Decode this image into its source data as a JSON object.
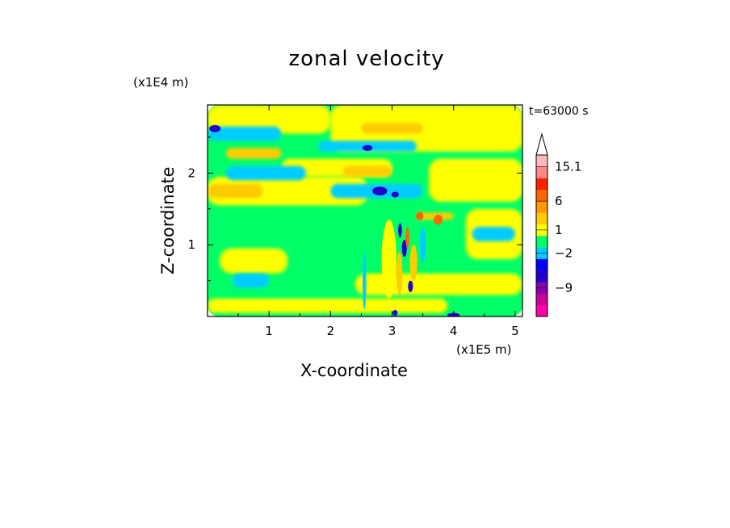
{
  "chart_data": {
    "type": "heatmap",
    "title": "zonal velocity",
    "xlabel": "X-coordinate",
    "ylabel": "Z-coordinate",
    "x_unit": "(x1E5 m)",
    "y_unit": "(x1E4 m)",
    "time_label": "t=63000 s",
    "xlim": [
      0,
      5.12
    ],
    "ylim": [
      0,
      2.95
    ],
    "x_ticks": [
      1,
      2,
      3,
      4,
      5
    ],
    "y_ticks": [
      1,
      2
    ],
    "colorbar": {
      "labels": [
        "15.1",
        "6",
        "1",
        "−2",
        "−9"
      ],
      "label_values": [
        15.1,
        6,
        1,
        -2,
        -9
      ],
      "colors": [
        "#ff00aa",
        "#cc0099",
        "#8800aa",
        "#2200cc",
        "#0000ff",
        "#00ccff",
        "#00ff66",
        "#ffff00",
        "#ffcc00",
        "#ff9900",
        "#ff6600",
        "#ff2200",
        "#ff8888",
        "#ffbbbb"
      ],
      "extend_max": true
    },
    "bands": [
      {
        "kind": "green",
        "x0": 0.0,
        "x1": 5.12,
        "y0": 0.0,
        "y1": 2.95
      },
      {
        "kind": "yellow",
        "x0": 0.0,
        "x1": 3.9,
        "y0": 0.05,
        "y1": 0.25
      },
      {
        "kind": "yellow",
        "x0": 2.4,
        "x1": 5.12,
        "y0": 0.3,
        "y1": 0.6
      },
      {
        "kind": "yellow",
        "x0": 0.0,
        "x1": 2.6,
        "y0": 1.55,
        "y1": 1.95
      },
      {
        "kind": "yellow",
        "x0": 2.0,
        "x1": 5.12,
        "y0": 2.3,
        "y1": 2.95
      },
      {
        "kind": "yellow",
        "x0": 0.0,
        "x1": 2.0,
        "y0": 2.55,
        "y1": 2.95
      },
      {
        "kind": "yellow",
        "x0": 4.2,
        "x1": 5.12,
        "y0": 0.8,
        "y1": 1.5
      },
      {
        "kind": "yellow",
        "x0": 1.2,
        "x1": 3.0,
        "y0": 1.95,
        "y1": 2.2
      },
      {
        "kind": "yellow",
        "x0": 3.6,
        "x1": 5.12,
        "y0": 1.6,
        "y1": 2.2
      },
      {
        "kind": "yellow",
        "x0": 0.2,
        "x1": 1.3,
        "y0": 0.6,
        "y1": 0.95
      },
      {
        "kind": "cyan",
        "x0": 0.3,
        "x1": 1.6,
        "y0": 1.9,
        "y1": 2.1
      },
      {
        "kind": "cyan",
        "x0": 2.0,
        "x1": 3.5,
        "y0": 1.65,
        "y1": 1.85
      },
      {
        "kind": "cyan",
        "x0": 0.0,
        "x1": 1.2,
        "y0": 2.45,
        "y1": 2.65
      },
      {
        "kind": "cyan",
        "x0": 1.8,
        "x1": 3.4,
        "y0": 2.3,
        "y1": 2.45
      },
      {
        "kind": "cyan",
        "x0": 0.4,
        "x1": 1.0,
        "y0": 0.4,
        "y1": 0.6
      },
      {
        "kind": "cyan",
        "x0": 4.3,
        "x1": 5.0,
        "y0": 1.05,
        "y1": 1.25
      },
      {
        "kind": "orange",
        "x0": 0.0,
        "x1": 0.9,
        "y0": 1.65,
        "y1": 1.85
      },
      {
        "kind": "orange",
        "x0": 2.2,
        "x1": 3.0,
        "y0": 1.95,
        "y1": 2.1
      },
      {
        "kind": "orange",
        "x0": 3.4,
        "x1": 4.0,
        "y0": 1.35,
        "y1": 1.45
      },
      {
        "kind": "orange",
        "x0": 0.3,
        "x1": 1.2,
        "y0": 2.2,
        "y1": 2.35
      },
      {
        "kind": "orange",
        "x0": 2.5,
        "x1": 3.5,
        "y0": 2.55,
        "y1": 2.7
      }
    ],
    "blobs": [
      {
        "kind": "blue",
        "x": 0.12,
        "y": 2.62,
        "rx": 0.09,
        "ry": 0.05
      },
      {
        "kind": "blue",
        "x": 2.6,
        "y": 2.35,
        "rx": 0.08,
        "ry": 0.04
      },
      {
        "kind": "blue",
        "x": 2.8,
        "y": 1.75,
        "rx": 0.12,
        "ry": 0.06
      },
      {
        "kind": "blue",
        "x": 3.05,
        "y": 1.7,
        "rx": 0.06,
        "ry": 0.04
      },
      {
        "kind": "blue",
        "x": 3.13,
        "y": 1.2,
        "rx": 0.03,
        "ry": 0.1
      },
      {
        "kind": "blue",
        "x": 3.2,
        "y": 0.95,
        "rx": 0.04,
        "ry": 0.12
      },
      {
        "kind": "blue",
        "x": 3.3,
        "y": 0.42,
        "rx": 0.04,
        "ry": 0.08
      },
      {
        "kind": "blue",
        "x": 3.05,
        "y": 0.05,
        "rx": 0.04,
        "ry": 0.04
      },
      {
        "kind": "blue",
        "x": 4.0,
        "y": 0.02,
        "rx": 0.1,
        "ry": 0.03
      },
      {
        "kind": "red",
        "x": 3.25,
        "y": 1.1,
        "rx": 0.03,
        "ry": 0.15
      },
      {
        "kind": "red",
        "x": 3.45,
        "y": 1.4,
        "rx": 0.06,
        "ry": 0.06
      },
      {
        "kind": "red",
        "x": 3.75,
        "y": 1.35,
        "rx": 0.07,
        "ry": 0.07
      },
      {
        "kind": "orange",
        "x": 3.35,
        "y": 0.75,
        "rx": 0.06,
        "ry": 0.25
      },
      {
        "kind": "orange",
        "x": 3.12,
        "y": 0.6,
        "rx": 0.05,
        "ry": 0.3
      },
      {
        "kind": "yellow",
        "x": 2.95,
        "y": 0.8,
        "rx": 0.12,
        "ry": 0.55
      },
      {
        "kind": "cyan",
        "x": 3.5,
        "y": 1.0,
        "rx": 0.05,
        "ry": 0.25
      },
      {
        "kind": "cyan",
        "x": 2.55,
        "y": 0.5,
        "rx": 0.03,
        "ry": 0.4
      }
    ]
  }
}
